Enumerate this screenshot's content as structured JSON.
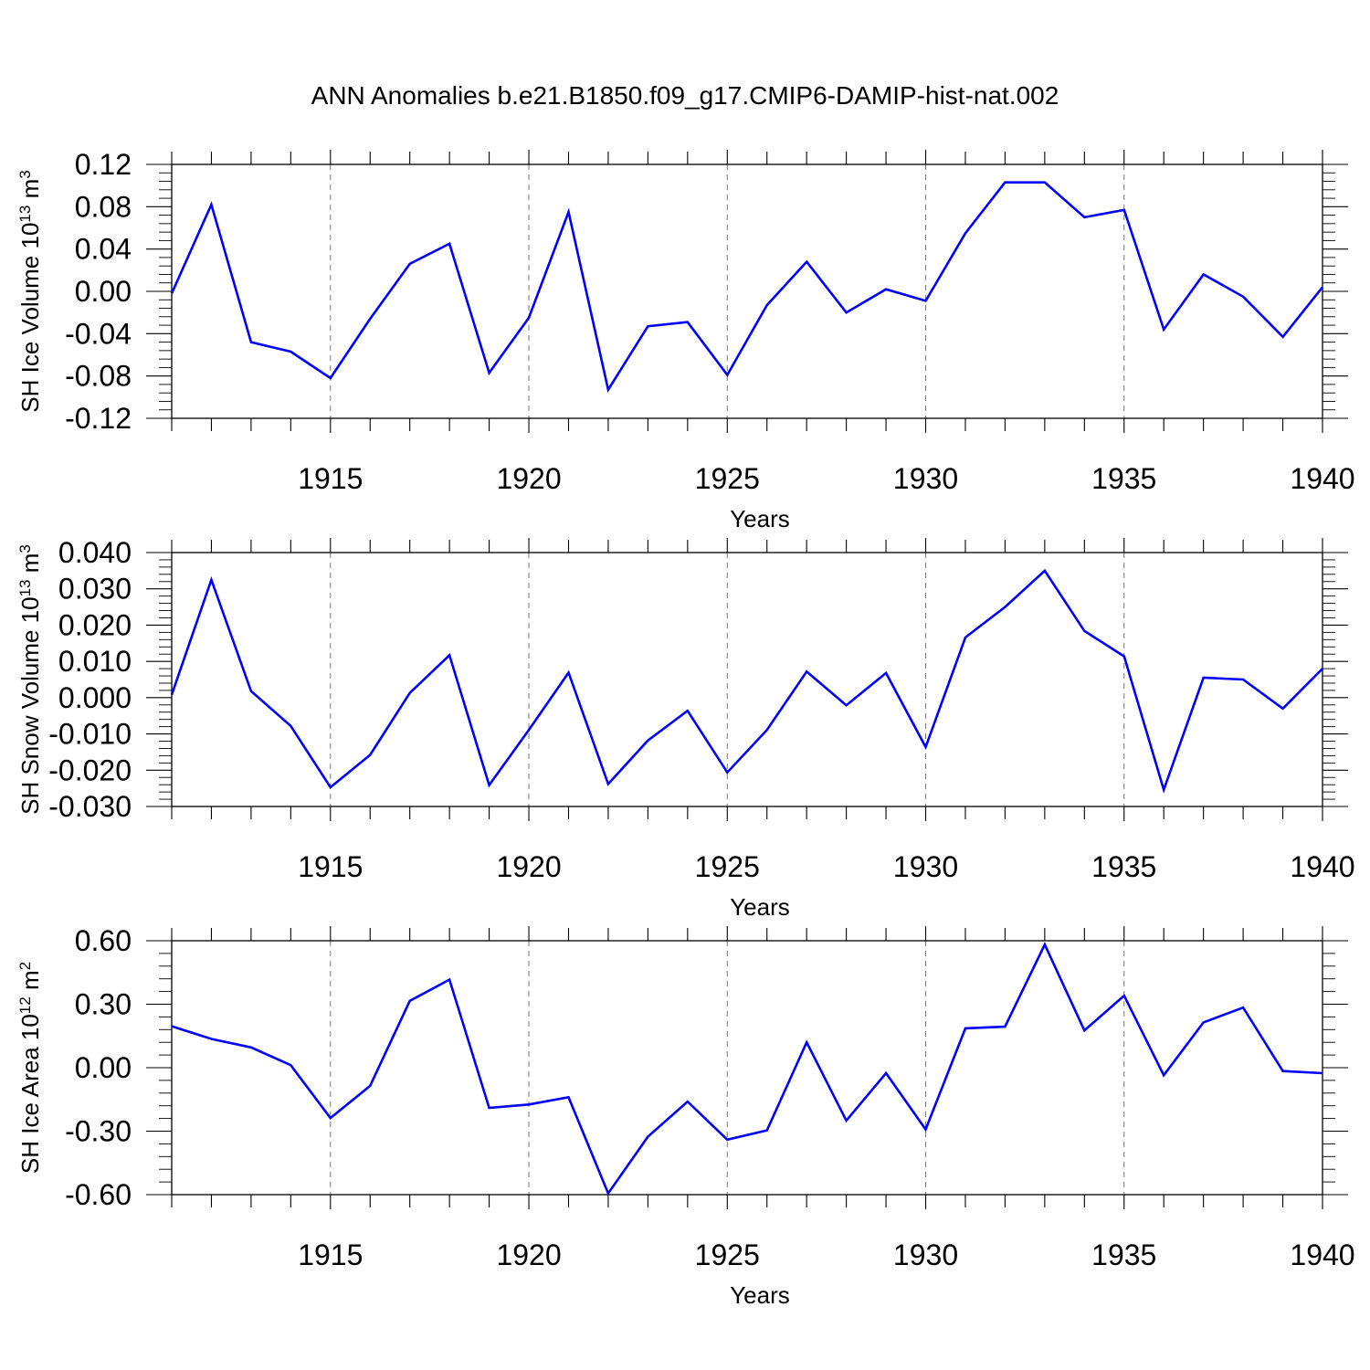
{
  "title": "ANN Anomalies b.e21.B1850.f09_g17.CMIP6-DAMIP-hist-nat.002",
  "chart_data": [
    {
      "type": "line",
      "ylabel_main": "SH Ice Volume 10",
      "ylabel_exp": "13",
      "ylabel_unit": " m",
      "ylabel_unit_exp": "3",
      "xlabel": "Years",
      "xlim": [
        1911,
        1940
      ],
      "ylim": [
        -0.12,
        0.12
      ],
      "yticks": [
        0.12,
        0.08,
        0.04,
        0.0,
        -0.04,
        -0.08,
        -0.12
      ],
      "ytick_labels": [
        "0.12",
        "0.08",
        "0.04",
        "0.00",
        "-0.04",
        "-0.08",
        "-0.12"
      ],
      "xticks": [
        1915,
        1920,
        1925,
        1930,
        1935,
        1940
      ],
      "xtick_labels": [
        "1915",
        "1920",
        "1925",
        "1930",
        "1935",
        "1940"
      ],
      "line_color": "#0000ff",
      "series": [
        {
          "name": "SH Ice Volume",
          "x": [
            1911,
            1912,
            1913,
            1914,
            1915,
            1916,
            1917,
            1918,
            1919,
            1920,
            1921,
            1922,
            1923,
            1924,
            1925,
            1926,
            1927,
            1928,
            1929,
            1930,
            1931,
            1932,
            1933,
            1934,
            1935,
            1936,
            1937,
            1938,
            1939,
            1940
          ],
          "values": [
            -0.002,
            0.082,
            -0.048,
            -0.057,
            -0.082,
            -0.026,
            0.026,
            0.045,
            -0.077,
            -0.025,
            0.075,
            -0.093,
            -0.033,
            -0.029,
            -0.079,
            -0.013,
            0.028,
            -0.02,
            0.002,
            -0.009,
            0.055,
            0.103,
            0.103,
            0.07,
            0.077,
            -0.036,
            0.016,
            -0.005,
            -0.043,
            0.004
          ]
        }
      ]
    },
    {
      "type": "line",
      "ylabel_main": "SH Snow Volume 10",
      "ylabel_exp": "13",
      "ylabel_unit": " m",
      "ylabel_unit_exp": "3",
      "xlabel": "Years",
      "xlim": [
        1911,
        1940
      ],
      "ylim": [
        -0.03,
        0.04
      ],
      "yticks": [
        0.04,
        0.03,
        0.02,
        0.01,
        0.0,
        -0.01,
        -0.02,
        -0.03
      ],
      "ytick_labels": [
        "0.040",
        "0.030",
        "0.020",
        "0.010",
        "0.000",
        "-0.010",
        "-0.020",
        "-0.030"
      ],
      "xticks": [
        1915,
        1920,
        1925,
        1930,
        1935,
        1940
      ],
      "xtick_labels": [
        "1915",
        "1920",
        "1925",
        "1930",
        "1935",
        "1940"
      ],
      "line_color": "#0000ff",
      "series": [
        {
          "name": "SH Snow Volume",
          "x": [
            1911,
            1912,
            1913,
            1914,
            1915,
            1916,
            1917,
            1918,
            1919,
            1920,
            1921,
            1922,
            1923,
            1924,
            1925,
            1926,
            1927,
            1928,
            1929,
            1930,
            1931,
            1932,
            1933,
            1934,
            1935,
            1936,
            1937,
            1938,
            1939,
            1940
          ],
          "values": [
            0.0008,
            0.0325,
            0.0018,
            -0.0078,
            -0.0247,
            -0.0158,
            0.0013,
            0.0117,
            -0.0241,
            -0.0089,
            0.0069,
            -0.0238,
            -0.0118,
            -0.0036,
            -0.0206,
            -0.0089,
            0.0072,
            -0.0021,
            0.0068,
            -0.0136,
            0.0166,
            0.025,
            0.035,
            0.0184,
            0.0114,
            -0.0254,
            0.0055,
            0.005,
            -0.003,
            0.008
          ]
        }
      ]
    },
    {
      "type": "line",
      "ylabel_main": "SH Ice Area 10",
      "ylabel_exp": "12",
      "ylabel_unit": " m",
      "ylabel_unit_exp": "2",
      "xlabel": "Years",
      "xlim": [
        1911,
        1940
      ],
      "ylim": [
        -0.6,
        0.6
      ],
      "yticks": [
        0.6,
        0.3,
        0.0,
        -0.3,
        -0.6
      ],
      "ytick_labels": [
        "0.60",
        "0.30",
        "0.00",
        "-0.30",
        "-0.60"
      ],
      "xticks": [
        1915,
        1920,
        1925,
        1930,
        1935,
        1940
      ],
      "xtick_labels": [
        "1915",
        "1920",
        "1925",
        "1930",
        "1935",
        "1940"
      ],
      "line_color": "#0000ff",
      "series": [
        {
          "name": "SH Ice Area",
          "x": [
            1911,
            1912,
            1913,
            1914,
            1915,
            1916,
            1917,
            1918,
            1919,
            1920,
            1921,
            1922,
            1923,
            1924,
            1925,
            1926,
            1927,
            1928,
            1929,
            1930,
            1931,
            1932,
            1933,
            1934,
            1935,
            1936,
            1937,
            1938,
            1939,
            1940
          ],
          "values": [
            0.196,
            0.136,
            0.096,
            0.012,
            -0.238,
            -0.086,
            0.316,
            0.416,
            -0.19,
            -0.174,
            -0.14,
            -0.594,
            -0.326,
            -0.16,
            -0.34,
            -0.296,
            0.12,
            -0.25,
            -0.026,
            -0.292,
            0.186,
            0.194,
            0.582,
            0.176,
            0.34,
            -0.036,
            0.214,
            0.284,
            -0.016,
            -0.026
          ]
        }
      ]
    }
  ]
}
